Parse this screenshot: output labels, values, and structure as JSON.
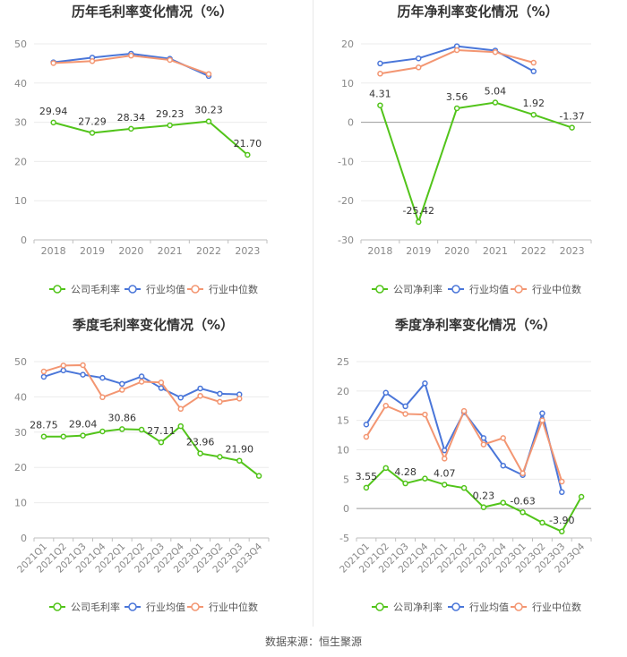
{
  "source": "数据来源：恒生聚源",
  "chart_data": [
    {
      "id": "annual-gross",
      "type": "line",
      "title": "历年毛利率变化情况（%）",
      "categories": [
        "2018",
        "2019",
        "2020",
        "2021",
        "2022",
        "2023"
      ],
      "ylim": [
        0,
        50
      ],
      "yticks": [
        0,
        10,
        20,
        30,
        40,
        50
      ],
      "series": [
        {
          "name": "公司毛利率",
          "color": "#52c41a",
          "labeled": true,
          "values": [
            29.94,
            27.29,
            28.34,
            29.23,
            30.23,
            21.7
          ],
          "labels": [
            "29.94",
            "27.29",
            "28.34",
            "29.23",
            "30.23",
            "21.70"
          ]
        },
        {
          "name": "行业均值",
          "color": "#4a76d9",
          "values": [
            45.3,
            46.5,
            47.5,
            46.2,
            41.8,
            null
          ]
        },
        {
          "name": "行业中位数",
          "color": "#f39672",
          "values": [
            45.1,
            45.6,
            47.0,
            45.9,
            42.3,
            null
          ]
        }
      ]
    },
    {
      "id": "annual-net",
      "type": "line",
      "title": "历年净利率变化情况（%）",
      "categories": [
        "2018",
        "2019",
        "2020",
        "2021",
        "2022",
        "2023"
      ],
      "ylim": [
        -30,
        20
      ],
      "yticks": [
        -30,
        -20,
        -10,
        0,
        10,
        20
      ],
      "series": [
        {
          "name": "公司净利率",
          "color": "#52c41a",
          "labeled": true,
          "values": [
            4.31,
            -25.42,
            3.56,
            5.04,
            1.92,
            -1.37
          ],
          "labels": [
            "4.31",
            "-25.42",
            "3.56",
            "5.04",
            "1.92",
            "-1.37"
          ]
        },
        {
          "name": "行业均值",
          "color": "#4a76d9",
          "values": [
            15.0,
            16.3,
            19.4,
            18.3,
            13.0,
            null
          ]
        },
        {
          "name": "行业中位数",
          "color": "#f39672",
          "values": [
            12.4,
            14.0,
            18.4,
            17.9,
            15.2,
            null
          ]
        }
      ]
    },
    {
      "id": "quarter-gross",
      "type": "line",
      "title": "季度毛利率变化情况（%）",
      "categories": [
        "2021Q1",
        "2021Q2",
        "2021Q3",
        "2021Q4",
        "2022Q1",
        "2022Q2",
        "2022Q3",
        "2022Q4",
        "2023Q1",
        "2023Q2",
        "2023Q3",
        "2023Q4"
      ],
      "ylim": [
        0,
        50
      ],
      "yticks": [
        0,
        10,
        20,
        30,
        40,
        50
      ],
      "series": [
        {
          "name": "公司毛利率",
          "color": "#52c41a",
          "labeled": true,
          "values": [
            28.75,
            28.75,
            29.04,
            30.2,
            30.86,
            30.7,
            27.11,
            31.7,
            23.96,
            23.0,
            21.9,
            17.6
          ],
          "labels": [
            "28.75",
            null,
            "29.04",
            null,
            "30.86",
            null,
            "27.11",
            null,
            "23.96",
            null,
            "21.90",
            null
          ]
        },
        {
          "name": "行业均值",
          "color": "#4a76d9",
          "values": [
            45.7,
            47.5,
            46.3,
            45.4,
            43.7,
            45.8,
            42.5,
            39.8,
            42.4,
            40.9,
            40.7,
            null
          ]
        },
        {
          "name": "行业中位数",
          "color": "#f39672",
          "values": [
            47.2,
            48.9,
            49.0,
            39.9,
            42.0,
            44.3,
            44.1,
            36.6,
            40.3,
            38.6,
            39.5,
            null
          ]
        }
      ]
    },
    {
      "id": "quarter-net",
      "type": "line",
      "title": "季度净利率变化情况（%）",
      "categories": [
        "2021Q1",
        "2021Q2",
        "2021Q3",
        "2021Q4",
        "2022Q1",
        "2022Q2",
        "2022Q3",
        "2022Q4",
        "2023Q1",
        "2023Q2",
        "2023Q3",
        "2023Q4"
      ],
      "ylim": [
        -5,
        25
      ],
      "yticks": [
        -5,
        0,
        5,
        10,
        15,
        20,
        25
      ],
      "series": [
        {
          "name": "公司净利率",
          "color": "#52c41a",
          "labeled": true,
          "values": [
            3.55,
            6.9,
            4.28,
            5.1,
            4.07,
            3.5,
            0.23,
            1.0,
            -0.63,
            -2.4,
            -3.9,
            2.0
          ],
          "labels": [
            "3.55",
            null,
            "4.28",
            null,
            "4.07",
            null,
            "0.23",
            null,
            "-0.63",
            null,
            "-3.90",
            null
          ]
        },
        {
          "name": "行业均值",
          "color": "#4a76d9",
          "values": [
            14.3,
            19.7,
            17.4,
            21.3,
            9.9,
            16.4,
            12.0,
            7.3,
            5.7,
            16.2,
            2.8,
            null
          ]
        },
        {
          "name": "行业中位数",
          "color": "#f39672",
          "values": [
            12.2,
            17.5,
            16.1,
            16.0,
            8.5,
            16.6,
            10.9,
            12.0,
            6.0,
            15.0,
            4.6,
            null
          ]
        }
      ]
    }
  ]
}
